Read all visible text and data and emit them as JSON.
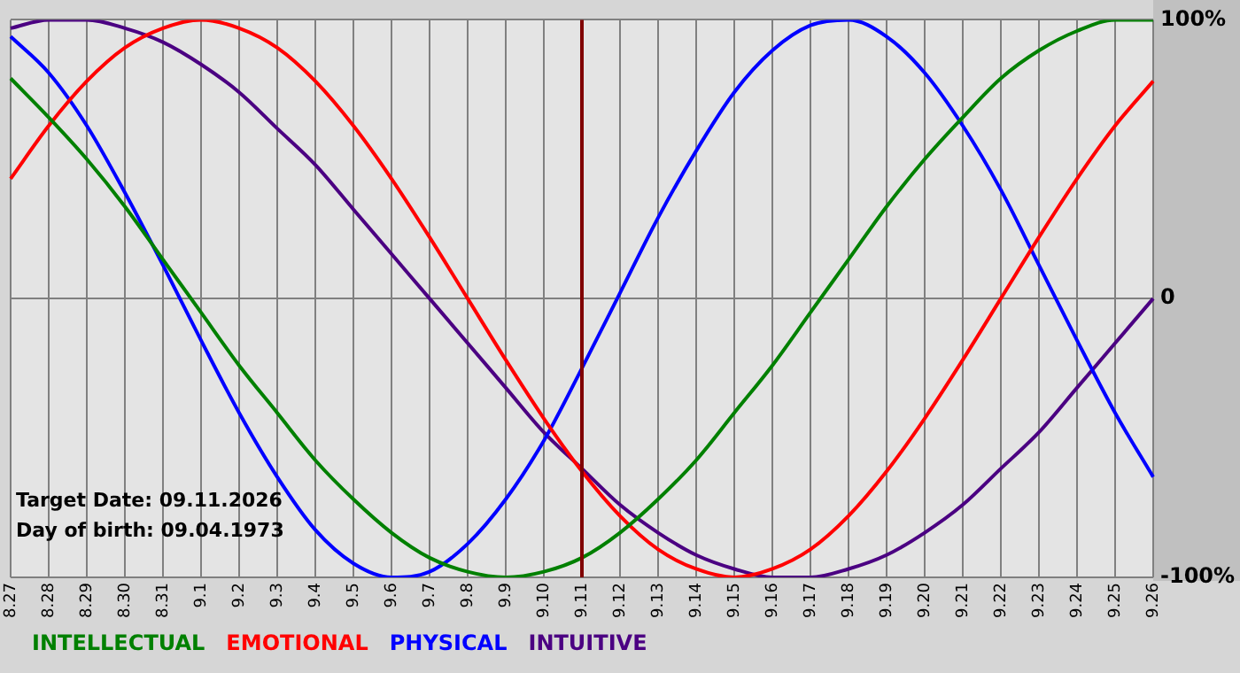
{
  "chart_data": {
    "type": "line",
    "categories": [
      "8.27",
      "8.28",
      "8.29",
      "8.30",
      "8.31",
      "9.1",
      "9.2",
      "9.3",
      "9.4",
      "9.5",
      "9.6",
      "9.7",
      "9.8",
      "9.9",
      "9.10",
      "9.11",
      "9.12",
      "9.13",
      "9.14",
      "9.15",
      "9.16",
      "9.17",
      "9.18",
      "9.19",
      "9.20",
      "9.21",
      "9.22",
      "9.23",
      "9.24",
      "9.25",
      "9.26"
    ],
    "series": [
      {
        "name": "INTELLECTUAL",
        "color": "#008000",
        "values": [
          79,
          65,
          50,
          33,
          14,
          -5,
          -24,
          -41,
          -58,
          -72,
          -84,
          -93,
          -98,
          -100,
          -98,
          -93,
          -84,
          -72,
          -58,
          -41,
          -24,
          -5,
          14,
          33,
          50,
          65,
          79,
          89,
          96,
          100,
          100
        ]
      },
      {
        "name": "EMOTIONAL",
        "color": "#ff0000",
        "values": [
          43,
          62,
          78,
          90,
          97,
          100,
          97,
          90,
          78,
          62,
          43,
          22,
          0,
          -22,
          -43,
          -62,
          -78,
          -90,
          -97,
          -100,
          -97,
          -90,
          -78,
          -62,
          -43,
          -22,
          0,
          22,
          43,
          62,
          78
        ]
      },
      {
        "name": "PHYSICAL",
        "color": "#0000ff",
        "values": [
          94,
          81,
          62,
          38,
          12,
          -15,
          -41,
          -64,
          -83,
          -95,
          -100,
          -98,
          -88,
          -72,
          -51,
          -25,
          2,
          29,
          53,
          74,
          89,
          98,
          100,
          94,
          81,
          62,
          39,
          12,
          -15,
          -41,
          -64
        ]
      },
      {
        "name": "INTUITIVE",
        "color": "#4b0082",
        "values": [
          97,
          100,
          100,
          97,
          92,
          84,
          74,
          61,
          48,
          32,
          16,
          0,
          -16,
          -32,
          -48,
          -61,
          -74,
          -84,
          -92,
          -97,
          -100,
          -100,
          -97,
          -92,
          -84,
          -74,
          -61,
          -48,
          -32,
          -16,
          0
        ]
      }
    ],
    "ylim": [
      -100,
      100
    ],
    "yticks": [
      {
        "value": 100,
        "label": "100%"
      },
      0,
      {
        "value": -100,
        "label": "-100%"
      }
    ],
    "grid": true,
    "legend": "bottom",
    "marker": "none",
    "line_style": "solid",
    "ref_lines": [
      {
        "axis": "x",
        "value": "9.11",
        "color": "#800000"
      }
    ],
    "annotations": [
      "Target Date: 09.11.2026",
      "Day of birth: 09.04.1973"
    ]
  }
}
